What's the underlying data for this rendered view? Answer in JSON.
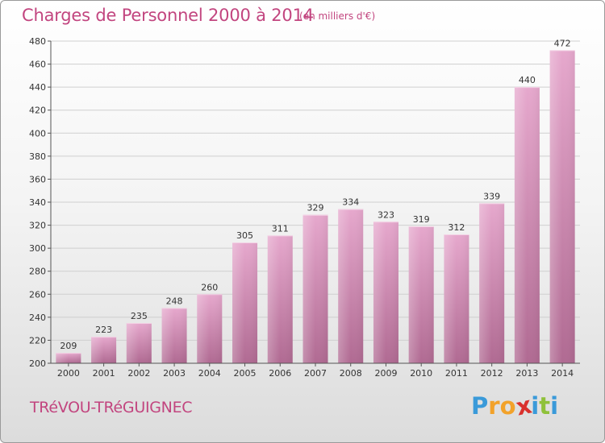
{
  "chart_data": {
    "type": "bar",
    "title": "Charges de Personnel 2000 à 2014",
    "subtitle": "(en milliers d'€)",
    "categories": [
      "2000",
      "2001",
      "2002",
      "2003",
      "2004",
      "2005",
      "2006",
      "2007",
      "2008",
      "2009",
      "2010",
      "2011",
      "2012",
      "2013",
      "2014"
    ],
    "values": [
      209,
      223,
      235,
      248,
      260,
      305,
      311,
      329,
      334,
      323,
      319,
      312,
      339,
      440,
      472
    ],
    "ylim": [
      200,
      480
    ],
    "yticks": [
      200,
      220,
      240,
      260,
      280,
      300,
      320,
      340,
      360,
      380,
      400,
      420,
      440,
      460,
      480
    ],
    "grid": true,
    "bar_color_top": "#e6a8cd",
    "bar_color_bottom": "#b06a92",
    "title_color": "#c2457f"
  },
  "footer": {
    "commune": "TRéVOU-TRéGUIGNEC",
    "logo_letters": [
      "P",
      "r",
      "o",
      "x",
      "i",
      "t",
      "i"
    ],
    "logo_colors": [
      "#3a9ad9",
      "#f2a22a",
      "#f2a22a",
      "#d9302c",
      "#3a9ad9",
      "#8fc13a",
      "#3a9ad9"
    ]
  }
}
